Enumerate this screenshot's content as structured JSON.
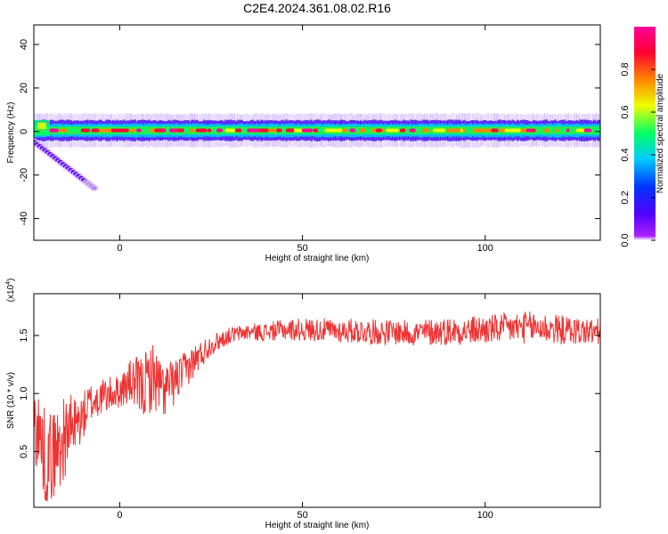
{
  "title": "C2E4.2024.361.08.02.R16",
  "chart_data": [
    {
      "type": "heatmap",
      "xlabel": "Height of straight line (km)",
      "ylabel": "Frequency (Hz)",
      "xlim": [
        -23.5,
        131.5
      ],
      "ylim": [
        -50,
        49
      ],
      "xticks": [
        0,
        50,
        100
      ],
      "xtick_labels": [
        "0",
        "50",
        "100"
      ],
      "yticks": [
        -40,
        -20,
        0,
        20,
        40
      ],
      "ytick_labels": [
        "-40",
        "-20",
        "0",
        "20",
        "40"
      ],
      "grid": false,
      "colorbar": {
        "label": "Normalized spectral amplitude",
        "range": [
          0,
          1
        ],
        "ticks": [
          0,
          0.2,
          0.4,
          0.6,
          0.8
        ],
        "tick_labels": [
          "0.0",
          "0.2",
          "0.4",
          "0.6",
          "0.8"
        ],
        "colormap": [
          "#8800ff",
          "#2200ff",
          "#00ccff",
          "#00ff66",
          "#eeff00",
          "#ff7700",
          "#ff0033",
          "#ff00aa"
        ]
      },
      "features": {
        "main_band": {
          "frequency_hz": 0.5,
          "half_width_hz": 3,
          "x_from": -23.5,
          "x_to": 131.5,
          "amplitude": "0.4-1.0"
        },
        "drifting_branch": {
          "x_from": -24,
          "x_to": -7,
          "frequency_from_hz": -4,
          "frequency_to_hz": -26,
          "amplitude": "0.0-0.15"
        }
      }
    },
    {
      "type": "line",
      "xlabel": "Height of straight line (km)",
      "ylabel": "SNR (10 * v/v)",
      "y_multiplier_label": "(x10",
      "y_multiplier_exponent": "4",
      "y_multiplier_close": ")",
      "xlim": [
        -23.5,
        131.5
      ],
      "ylim": [
        0.02,
        1.86
      ],
      "xticks": [
        0,
        50,
        100
      ],
      "xtick_labels": [
        "0",
        "50",
        "100"
      ],
      "yticks": [
        0.5,
        1.0,
        1.5
      ],
      "ytick_labels": [
        "0.5",
        "1.0",
        "1.5"
      ],
      "grid": false,
      "color": "#ee3333",
      "series": [
        {
          "x": [
            -23,
            -20,
            -17,
            -14,
            -11,
            -8,
            -5,
            -2,
            0,
            3,
            6,
            9,
            12,
            15,
            18,
            21,
            25,
            30,
            35,
            40,
            45,
            50,
            55,
            60,
            65,
            70,
            75,
            80,
            85,
            90,
            95,
            100,
            105,
            110,
            115,
            120,
            125,
            131
          ],
          "y": [
            0.75,
            0.42,
            0.52,
            0.68,
            0.75,
            0.92,
            0.97,
            1.0,
            1.02,
            1.1,
            1.05,
            1.15,
            1.02,
            1.1,
            1.2,
            1.3,
            1.42,
            1.5,
            1.53,
            1.53,
            1.55,
            1.55,
            1.55,
            1.54,
            1.54,
            1.53,
            1.53,
            1.52,
            1.53,
            1.54,
            1.54,
            1.55,
            1.56,
            1.57,
            1.57,
            1.55,
            1.54,
            1.53
          ],
          "noise": [
            0.38,
            0.4,
            0.4,
            0.32,
            0.22,
            0.18,
            0.16,
            0.15,
            0.14,
            0.2,
            0.28,
            0.3,
            0.24,
            0.2,
            0.16,
            0.14,
            0.09,
            0.07,
            0.07,
            0.08,
            0.09,
            0.1,
            0.1,
            0.1,
            0.11,
            0.11,
            0.11,
            0.11,
            0.12,
            0.12,
            0.12,
            0.13,
            0.13,
            0.14,
            0.14,
            0.13,
            0.12,
            0.12
          ]
        }
      ]
    }
  ]
}
